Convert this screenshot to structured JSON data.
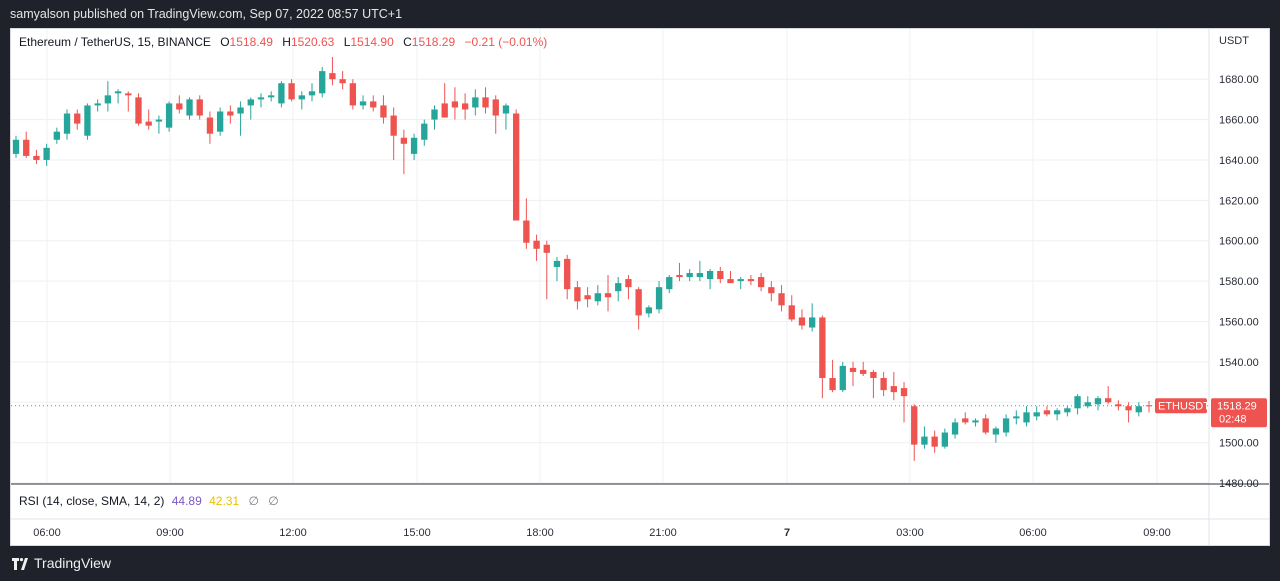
{
  "header": {
    "publisher_text": "samyalson published on TradingView.com, Sep 07, 2022 08:57 UTC+1"
  },
  "legend": {
    "symbol": "Ethereum / TetherUS, 15, BINANCE",
    "open_label": "O",
    "open": "1518.49",
    "high_label": "H",
    "high": "1520.63",
    "low_label": "L",
    "low": "1514.90",
    "close_label": "C",
    "close": "1518.29",
    "change": "−0.21 (−0.01%)"
  },
  "price_axis": {
    "currency": "USDT",
    "price_tag_symbol": "ETHUSDT",
    "price_tag_value": "1518.29",
    "countdown": "02:48"
  },
  "rsi_pane": {
    "label": "RSI (14, close, SMA, 14, 2)",
    "rsi_value": "44.89",
    "sma_value": "42.31",
    "empty_1": "∅",
    "empty_2": "∅"
  },
  "footer": {
    "brand": "TradingView"
  },
  "colors": {
    "up": "#26a69a",
    "down": "#ef5350",
    "rsi": "#7e57c2",
    "rsi_sma": "#e8c100",
    "grid": "#eef0f3"
  },
  "chart_data": {
    "type": "candlestick",
    "symbol": "ETHUSDT",
    "interval": "15",
    "ylim": [
      1480,
      1690
    ],
    "y_ticks": [
      1480,
      1500,
      1520,
      1540,
      1560,
      1580,
      1600,
      1620,
      1640,
      1660,
      1680
    ],
    "x_ticks": [
      "06:00",
      "09:00",
      "12:00",
      "15:00",
      "18:00",
      "21:00",
      "7",
      "03:00",
      "06:00",
      "09:00"
    ],
    "last_price": 1518.29,
    "candles": [
      {
        "o": 1643,
        "h": 1652,
        "l": 1641,
        "c": 1650
      },
      {
        "o": 1650,
        "h": 1654,
        "l": 1641,
        "c": 1642
      },
      {
        "o": 1642,
        "h": 1645,
        "l": 1638,
        "c": 1640
      },
      {
        "o": 1640,
        "h": 1648,
        "l": 1637,
        "c": 1646
      },
      {
        "o": 1650,
        "h": 1656,
        "l": 1648,
        "c": 1654
      },
      {
        "o": 1653,
        "h": 1665,
        "l": 1650,
        "c": 1663
      },
      {
        "o": 1663,
        "h": 1665,
        "l": 1655,
        "c": 1658
      },
      {
        "o": 1652,
        "h": 1668,
        "l": 1650,
        "c": 1667
      },
      {
        "o": 1667,
        "h": 1670,
        "l": 1664,
        "c": 1668
      },
      {
        "o": 1668,
        "h": 1679,
        "l": 1664,
        "c": 1672
      },
      {
        "o": 1673,
        "h": 1675,
        "l": 1668,
        "c": 1674
      },
      {
        "o": 1673,
        "h": 1674,
        "l": 1664,
        "c": 1672
      },
      {
        "o": 1671,
        "h": 1673,
        "l": 1657,
        "c": 1658
      },
      {
        "o": 1659,
        "h": 1665,
        "l": 1655,
        "c": 1657
      },
      {
        "o": 1659,
        "h": 1662,
        "l": 1653,
        "c": 1660
      },
      {
        "o": 1656,
        "h": 1669,
        "l": 1654,
        "c": 1668
      },
      {
        "o": 1668,
        "h": 1672,
        "l": 1663,
        "c": 1665
      },
      {
        "o": 1662,
        "h": 1671,
        "l": 1660,
        "c": 1670
      },
      {
        "o": 1670,
        "h": 1672,
        "l": 1660,
        "c": 1662
      },
      {
        "o": 1661,
        "h": 1664,
        "l": 1648,
        "c": 1653
      },
      {
        "o": 1654,
        "h": 1666,
        "l": 1652,
        "c": 1664
      },
      {
        "o": 1664,
        "h": 1667,
        "l": 1658,
        "c": 1662
      },
      {
        "o": 1663,
        "h": 1669,
        "l": 1652,
        "c": 1666
      },
      {
        "o": 1667,
        "h": 1671,
        "l": 1660,
        "c": 1670
      },
      {
        "o": 1670,
        "h": 1673,
        "l": 1666,
        "c": 1671
      },
      {
        "o": 1671,
        "h": 1674,
        "l": 1669,
        "c": 1672
      },
      {
        "o": 1668,
        "h": 1679,
        "l": 1666,
        "c": 1678
      },
      {
        "o": 1678,
        "h": 1680,
        "l": 1669,
        "c": 1670
      },
      {
        "o": 1670,
        "h": 1674,
        "l": 1665,
        "c": 1672
      },
      {
        "o": 1672,
        "h": 1678,
        "l": 1669,
        "c": 1674
      },
      {
        "o": 1673,
        "h": 1686,
        "l": 1671,
        "c": 1684
      },
      {
        "o": 1683,
        "h": 1691,
        "l": 1677,
        "c": 1680
      },
      {
        "o": 1680,
        "h": 1684,
        "l": 1675,
        "c": 1678
      },
      {
        "o": 1678,
        "h": 1680,
        "l": 1665,
        "c": 1667
      },
      {
        "o": 1667,
        "h": 1672,
        "l": 1665,
        "c": 1669
      },
      {
        "o": 1669,
        "h": 1672,
        "l": 1664,
        "c": 1666
      },
      {
        "o": 1667,
        "h": 1672,
        "l": 1658,
        "c": 1661
      },
      {
        "o": 1662,
        "h": 1666,
        "l": 1640,
        "c": 1652
      },
      {
        "o": 1651,
        "h": 1655,
        "l": 1633,
        "c": 1648
      },
      {
        "o": 1643,
        "h": 1653,
        "l": 1640,
        "c": 1651
      },
      {
        "o": 1650,
        "h": 1660,
        "l": 1647,
        "c": 1658
      },
      {
        "o": 1660,
        "h": 1667,
        "l": 1655,
        "c": 1665
      },
      {
        "o": 1668,
        "h": 1678,
        "l": 1662,
        "c": 1661
      },
      {
        "o": 1669,
        "h": 1676,
        "l": 1660,
        "c": 1666
      },
      {
        "o": 1668,
        "h": 1673,
        "l": 1660,
        "c": 1665
      },
      {
        "o": 1666,
        "h": 1675,
        "l": 1662,
        "c": 1671
      },
      {
        "o": 1671,
        "h": 1676,
        "l": 1663,
        "c": 1666
      },
      {
        "o": 1670,
        "h": 1672,
        "l": 1653,
        "c": 1662
      },
      {
        "o": 1663,
        "h": 1668,
        "l": 1655,
        "c": 1667
      },
      {
        "o": 1663,
        "h": 1665,
        "l": 1610,
        "c": 1610
      },
      {
        "o": 1610,
        "h": 1621,
        "l": 1596,
        "c": 1599
      },
      {
        "o": 1600,
        "h": 1603,
        "l": 1590,
        "c": 1596
      },
      {
        "o": 1598,
        "h": 1600,
        "l": 1571,
        "c": 1594
      },
      {
        "o": 1587,
        "h": 1592,
        "l": 1580,
        "c": 1590
      },
      {
        "o": 1591,
        "h": 1593,
        "l": 1571,
        "c": 1576
      },
      {
        "o": 1577,
        "h": 1580,
        "l": 1566,
        "c": 1570
      },
      {
        "o": 1573,
        "h": 1577,
        "l": 1567,
        "c": 1571
      },
      {
        "o": 1570,
        "h": 1578,
        "l": 1568,
        "c": 1574
      },
      {
        "o": 1574,
        "h": 1583,
        "l": 1565,
        "c": 1572
      },
      {
        "o": 1575,
        "h": 1582,
        "l": 1570,
        "c": 1579
      },
      {
        "o": 1581,
        "h": 1583,
        "l": 1571,
        "c": 1577
      },
      {
        "o": 1576,
        "h": 1577,
        "l": 1556,
        "c": 1563
      },
      {
        "o": 1564,
        "h": 1568,
        "l": 1562,
        "c": 1567
      },
      {
        "o": 1566,
        "h": 1580,
        "l": 1564,
        "c": 1577
      },
      {
        "o": 1576,
        "h": 1583,
        "l": 1574,
        "c": 1582
      },
      {
        "o": 1583,
        "h": 1589,
        "l": 1580,
        "c": 1582
      },
      {
        "o": 1582,
        "h": 1586,
        "l": 1580,
        "c": 1584
      },
      {
        "o": 1582,
        "h": 1590,
        "l": 1580,
        "c": 1584
      },
      {
        "o": 1581,
        "h": 1586,
        "l": 1576,
        "c": 1585
      },
      {
        "o": 1585,
        "h": 1587,
        "l": 1579,
        "c": 1581
      },
      {
        "o": 1581,
        "h": 1585,
        "l": 1579,
        "c": 1579
      },
      {
        "o": 1580,
        "h": 1582,
        "l": 1576,
        "c": 1581
      },
      {
        "o": 1581,
        "h": 1583,
        "l": 1578,
        "c": 1580
      },
      {
        "o": 1582,
        "h": 1584,
        "l": 1575,
        "c": 1577
      },
      {
        "o": 1577,
        "h": 1580,
        "l": 1570,
        "c": 1574
      },
      {
        "o": 1574,
        "h": 1578,
        "l": 1565,
        "c": 1568
      },
      {
        "o": 1568,
        "h": 1573,
        "l": 1560,
        "c": 1561
      },
      {
        "o": 1562,
        "h": 1566,
        "l": 1556,
        "c": 1558
      },
      {
        "o": 1557,
        "h": 1569,
        "l": 1555,
        "c": 1562
      },
      {
        "o": 1562,
        "h": 1563,
        "l": 1522,
        "c": 1532
      },
      {
        "o": 1532,
        "h": 1541,
        "l": 1525,
        "c": 1526
      },
      {
        "o": 1526,
        "h": 1540,
        "l": 1525,
        "c": 1538
      },
      {
        "o": 1537,
        "h": 1540,
        "l": 1528,
        "c": 1535
      },
      {
        "o": 1536,
        "h": 1540,
        "l": 1533,
        "c": 1534
      },
      {
        "o": 1535,
        "h": 1536,
        "l": 1522,
        "c": 1532
      },
      {
        "o": 1532,
        "h": 1535,
        "l": 1523,
        "c": 1526
      },
      {
        "o": 1528,
        "h": 1535,
        "l": 1521,
        "c": 1525
      },
      {
        "o": 1527,
        "h": 1530,
        "l": 1510,
        "c": 1523
      },
      {
        "o": 1518,
        "h": 1519,
        "l": 1491,
        "c": 1499
      },
      {
        "o": 1499,
        "h": 1508,
        "l": 1497,
        "c": 1503
      },
      {
        "o": 1503,
        "h": 1506,
        "l": 1495,
        "c": 1498
      },
      {
        "o": 1498,
        "h": 1507,
        "l": 1497,
        "c": 1505
      },
      {
        "o": 1504,
        "h": 1512,
        "l": 1502,
        "c": 1510
      },
      {
        "o": 1512,
        "h": 1515,
        "l": 1509,
        "c": 1510
      },
      {
        "o": 1510,
        "h": 1512,
        "l": 1508,
        "c": 1511
      },
      {
        "o": 1512,
        "h": 1514,
        "l": 1504,
        "c": 1505
      },
      {
        "o": 1504,
        "h": 1508,
        "l": 1500,
        "c": 1507
      },
      {
        "o": 1505,
        "h": 1514,
        "l": 1503,
        "c": 1512
      },
      {
        "o": 1512,
        "h": 1516,
        "l": 1509,
        "c": 1513
      },
      {
        "o": 1510,
        "h": 1518,
        "l": 1508,
        "c": 1515
      },
      {
        "o": 1513,
        "h": 1518,
        "l": 1511,
        "c": 1515
      },
      {
        "o": 1516,
        "h": 1518,
        "l": 1513,
        "c": 1514
      },
      {
        "o": 1514,
        "h": 1517,
        "l": 1511,
        "c": 1516
      },
      {
        "o": 1515,
        "h": 1518,
        "l": 1513,
        "c": 1517
      },
      {
        "o": 1517,
        "h": 1524,
        "l": 1514,
        "c": 1523
      },
      {
        "o": 1518,
        "h": 1523,
        "l": 1517,
        "c": 1520
      },
      {
        "o": 1519,
        "h": 1523,
        "l": 1516,
        "c": 1522
      },
      {
        "o": 1522,
        "h": 1528,
        "l": 1519,
        "c": 1520
      },
      {
        "o": 1519,
        "h": 1521,
        "l": 1516,
        "c": 1518
      },
      {
        "o": 1518,
        "h": 1520,
        "l": 1510,
        "c": 1516
      },
      {
        "o": 1515,
        "h": 1520,
        "l": 1513,
        "c": 1518
      },
      {
        "o": 1518.49,
        "h": 1520.63,
        "l": 1514.9,
        "c": 1518.29
      }
    ]
  }
}
